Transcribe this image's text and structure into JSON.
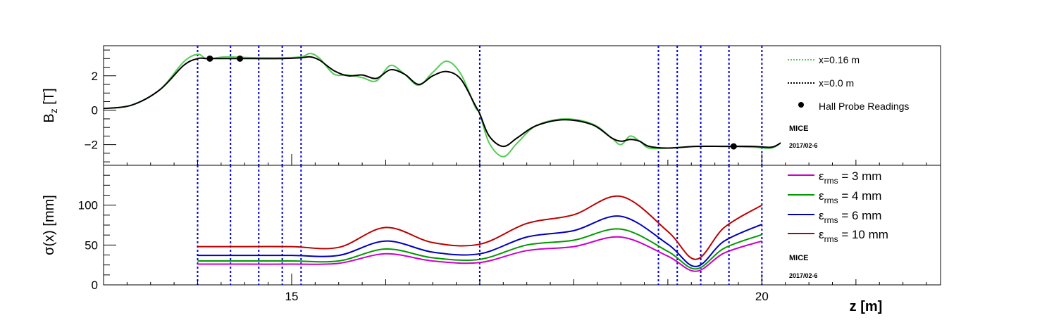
{
  "chart_data": [
    {
      "type": "line",
      "ylabel": "B",
      "ylabel_sub": "z",
      "ylabel_unit": " [T]",
      "xlim": [
        13.0,
        21.9
      ],
      "ylim": [
        -3.2,
        3.75
      ],
      "y_ticks": [
        -2,
        0,
        2
      ],
      "y_tick_labels": [
        "−2",
        "0",
        "2"
      ],
      "legend_placement": "top-right",
      "series": [
        {
          "name": "x=0.16 m",
          "color": "#55cc55",
          "style": "dotted",
          "x": [
            13.0,
            13.3,
            13.6,
            13.85,
            14.0,
            14.1,
            14.3,
            14.6,
            14.9,
            15.1,
            15.2,
            15.3,
            15.45,
            15.6,
            15.75,
            15.9,
            16.05,
            16.2,
            16.35,
            16.5,
            16.65,
            16.8,
            16.95,
            17.0,
            17.1,
            17.25,
            17.4,
            17.6,
            17.9,
            18.2,
            18.4,
            18.5,
            18.6,
            18.7,
            18.8,
            19.0,
            19.3,
            19.6,
            19.9,
            20.1,
            20.2
          ],
          "y": [
            0.1,
            0.3,
            1.2,
            2.8,
            3.25,
            3.0,
            3.1,
            3.05,
            3.05,
            3.1,
            3.3,
            3.0,
            2.1,
            2.05,
            1.9,
            1.7,
            2.6,
            2.1,
            1.45,
            2.2,
            2.85,
            2.1,
            0.2,
            -0.2,
            -1.9,
            -2.7,
            -1.9,
            -0.9,
            -0.5,
            -0.8,
            -1.6,
            -2.0,
            -1.5,
            -1.8,
            -2.2,
            -2.2,
            -2.1,
            -2.1,
            -2.15,
            -2.2,
            -1.9
          ]
        },
        {
          "name": "x=0.0 m",
          "color": "#000000",
          "style": "dotted",
          "x": [
            13.0,
            13.3,
            13.6,
            13.85,
            14.0,
            14.1,
            14.3,
            14.6,
            14.9,
            15.1,
            15.2,
            15.3,
            15.45,
            15.6,
            15.75,
            15.9,
            16.05,
            16.2,
            16.35,
            16.5,
            16.65,
            16.8,
            16.95,
            17.0,
            17.1,
            17.25,
            17.4,
            17.6,
            17.9,
            18.2,
            18.4,
            18.5,
            18.6,
            18.7,
            18.8,
            19.0,
            19.3,
            19.6,
            19.9,
            20.1,
            20.2
          ],
          "y": [
            0.1,
            0.3,
            1.2,
            2.6,
            3.0,
            3.0,
            3.0,
            3.0,
            3.0,
            3.05,
            3.1,
            2.9,
            2.3,
            2.0,
            2.05,
            1.85,
            2.35,
            2.1,
            1.5,
            2.0,
            2.25,
            1.8,
            0.3,
            -0.2,
            -1.5,
            -2.1,
            -1.6,
            -0.9,
            -0.55,
            -0.85,
            -1.6,
            -1.8,
            -1.7,
            -1.8,
            -2.1,
            -2.2,
            -2.1,
            -2.1,
            -2.1,
            -2.15,
            -1.9
          ]
        },
        {
          "name": "Hall Probe Readings",
          "color": "#000000",
          "style": "markers",
          "x": [
            14.13,
            14.45,
            19.7
          ],
          "y": [
            3.0,
            3.0,
            -2.1
          ]
        }
      ],
      "annotations": [
        "MICE",
        "2017/02-6"
      ]
    },
    {
      "type": "line",
      "xlabel": "z [m]",
      "ylabel": "σ(x) [mm]",
      "xlim": [
        13.0,
        21.9
      ],
      "ylim": [
        0,
        150
      ],
      "y_ticks": [
        0,
        50,
        100
      ],
      "y_tick_labels": [
        "0",
        "50",
        "100"
      ],
      "x_ticks": [
        15,
        20
      ],
      "x_tick_labels": [
        "15",
        "20"
      ],
      "legend_placement": "top-right",
      "series": [
        {
          "name": "3 mm",
          "color": "#cc00cc",
          "x": [
            14.0,
            14.5,
            15.0,
            15.5,
            16.0,
            16.5,
            17.0,
            17.5,
            18.0,
            18.5,
            19.0,
            19.3,
            19.6,
            20.0
          ],
          "y": [
            26,
            26,
            26,
            27,
            39,
            30,
            28,
            43,
            48,
            60,
            36,
            17,
            40,
            55
          ]
        },
        {
          "name": "4 mm",
          "color": "#009900",
          "x": [
            14.0,
            14.5,
            15.0,
            15.5,
            16.0,
            16.5,
            17.0,
            17.5,
            18.0,
            18.5,
            19.0,
            19.3,
            19.6,
            20.0
          ],
          "y": [
            30,
            30,
            30,
            30,
            45,
            34,
            32,
            50,
            56,
            70,
            42,
            20,
            46,
            63
          ]
        },
        {
          "name": "6 mm",
          "color": "#0000bb",
          "x": [
            14.0,
            14.5,
            15.0,
            15.5,
            16.0,
            16.5,
            17.0,
            17.5,
            18.0,
            18.5,
            19.0,
            19.3,
            19.6,
            20.0
          ],
          "y": [
            37,
            37,
            37,
            37,
            55,
            41,
            39,
            60,
            68,
            86,
            51,
            23,
            55,
            76
          ]
        },
        {
          "name": "10 mm",
          "color": "#bb0000",
          "x": [
            14.0,
            14.5,
            15.0,
            15.5,
            16.0,
            16.5,
            17.0,
            17.5,
            18.0,
            18.5,
            19.0,
            19.3,
            19.6,
            20.0
          ],
          "y": [
            48,
            48,
            48,
            47,
            72,
            53,
            51,
            77,
            88,
            111,
            67,
            32,
            72,
            100
          ]
        }
      ],
      "legend_prefix": "ε",
      "legend_sub": "rms",
      "annotations": [
        "MICE",
        "2017/02-6"
      ]
    }
  ],
  "station_lines_z": [
    14.0,
    14.35,
    14.65,
    14.9,
    15.1,
    17.0,
    18.9,
    19.1,
    19.35,
    19.65,
    20.0
  ],
  "station_line_color": "#0000dd"
}
